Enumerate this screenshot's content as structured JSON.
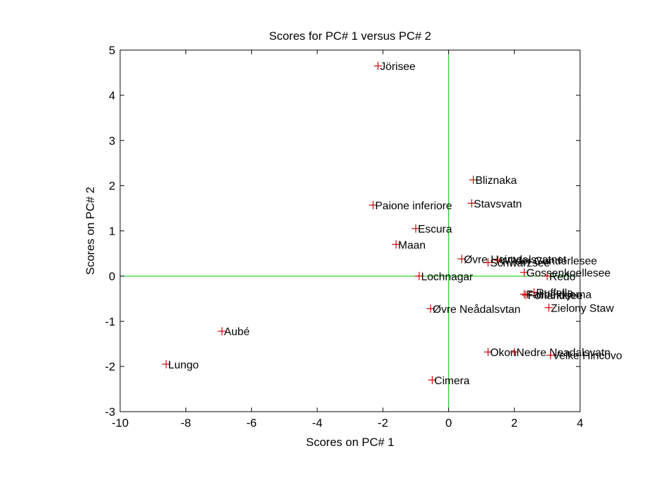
{
  "chart_data": {
    "type": "scatter",
    "title": "Scores for PC# 1 versus PC# 2",
    "xlabel": "Scores on PC# 1",
    "ylabel": "Scores on PC# 2",
    "xlim": [
      -10,
      4
    ],
    "ylim": [
      -3,
      5
    ],
    "xticks": [
      -10,
      -8,
      -6,
      -4,
      -2,
      0,
      2,
      4
    ],
    "yticks": [
      -3,
      -2,
      -1,
      0,
      1,
      2,
      3,
      4,
      5
    ],
    "grid": false,
    "reference_lines": {
      "x": 0,
      "y": 0,
      "color": "#00cc00"
    },
    "marker": "+",
    "marker_color": "#cc0000",
    "points": [
      {
        "label": "Jörisee",
        "x": -2.15,
        "y": 4.65
      },
      {
        "label": "Bliznaka",
        "x": 0.75,
        "y": 2.13
      },
      {
        "label": "Stavsvatn",
        "x": 0.7,
        "y": 1.61
      },
      {
        "label": "Paione inferiore",
        "x": -2.3,
        "y": 1.57
      },
      {
        "label": "Escura",
        "x": -1.0,
        "y": 1.05
      },
      {
        "label": "Maan",
        "x": -1.6,
        "y": 0.7
      },
      {
        "label": "Øvre Heimdalsvatnet",
        "x": 0.4,
        "y": 0.38
      },
      {
        "label": "Schwarzsee",
        "x": 1.2,
        "y": 0.3
      },
      {
        "label": "Wilder Gunderlesee",
        "x": 1.5,
        "y": 0.35
      },
      {
        "label": "Gossenkoellesee",
        "x": 2.3,
        "y": 0.08
      },
      {
        "label": "Redo",
        "x": 3.0,
        "y": 0.0
      },
      {
        "label": "Lochnagar",
        "x": -0.9,
        "y": 0.0
      },
      {
        "label": "Forlandsee",
        "x": 2.35,
        "y": -0.42
      },
      {
        "label": "Ruffella",
        "x": 2.6,
        "y": -0.36
      },
      {
        "label": "Fallbekkjerna",
        "x": 2.3,
        "y": -0.4
      },
      {
        "label": "Zielony Staw",
        "x": 3.05,
        "y": -0.7
      },
      {
        "label": "Øvre Neådalsvtan",
        "x": -0.55,
        "y": -0.72
      },
      {
        "label": "Aubé",
        "x": -6.9,
        "y": -1.22
      },
      {
        "label": "Lungo",
        "x": -8.6,
        "y": -1.95
      },
      {
        "label": "Okon",
        "x": 1.2,
        "y": -1.68
      },
      {
        "label": "Nedre Neadalsvatn",
        "x": 2.0,
        "y": -1.68
      },
      {
        "label": "Velke Hincovo",
        "x": 3.1,
        "y": -1.75
      },
      {
        "label": "Cimera",
        "x": -0.5,
        "y": -2.3
      }
    ]
  }
}
